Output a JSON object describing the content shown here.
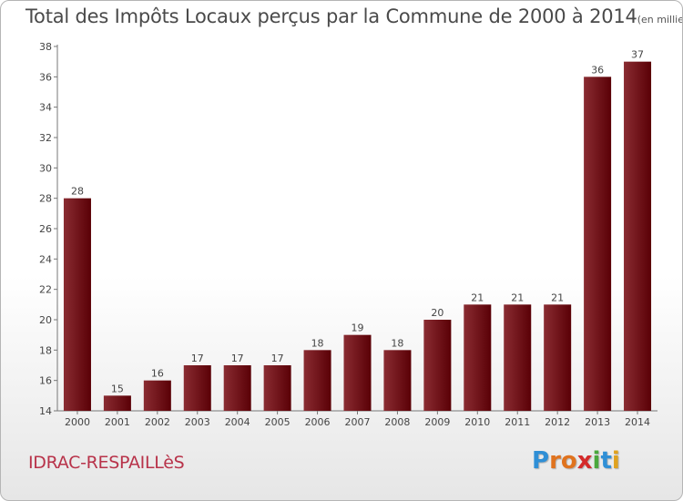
{
  "header": {
    "title": "Total des Impôts Locaux perçus par la Commune de 2000 à 2014",
    "unit": "(en milliers d'€)"
  },
  "footer": {
    "commune": "IDRAC-RESPAILLèS",
    "logo": [
      "P",
      "r",
      "o",
      "x",
      "i",
      "t",
      "i"
    ]
  },
  "colors": {
    "bar_dark": "#5a0006",
    "bar_light": "#8a2c32",
    "commune_text": "#b8334a",
    "logo": [
      "#2f8fd6",
      "#e0731e",
      "#e0731e",
      "#d42a2a",
      "#4aa83c",
      "#2f8fd6",
      "#e0a21e"
    ]
  },
  "chart_data": {
    "type": "bar",
    "title": "Total des Impôts Locaux perçus par la Commune de 2000 à 2014",
    "xlabel": "",
    "ylabel": "",
    "categories": [
      "2000",
      "2001",
      "2002",
      "2003",
      "2004",
      "2005",
      "2006",
      "2007",
      "2008",
      "2009",
      "2010",
      "2011",
      "2012",
      "2013",
      "2014"
    ],
    "values": [
      28,
      15,
      16,
      17,
      17,
      17,
      18,
      19,
      18,
      20,
      21,
      21,
      21,
      36,
      37
    ],
    "ylim": [
      14,
      38
    ],
    "yticks": [
      14,
      16,
      18,
      20,
      22,
      24,
      26,
      28,
      30,
      32,
      34,
      36,
      38
    ],
    "grid": false,
    "legend": "none"
  }
}
